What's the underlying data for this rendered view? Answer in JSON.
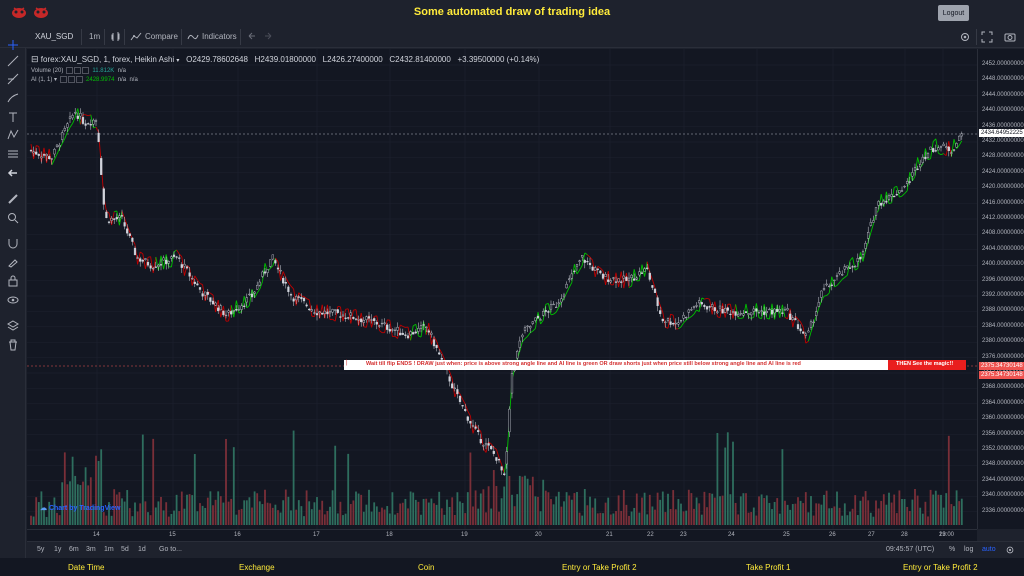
{
  "header": {
    "title": "Some automated draw of trading idea",
    "logout": "Logout"
  },
  "toolbar": {
    "symbol": "XAU_SGD",
    "interval": "1m",
    "compare": "Compare",
    "indicators": "Indicators"
  },
  "legend": {
    "title": "forex:XAU_SGD, 1, forex, Heikin Ashi",
    "o": "O2429.78602648",
    "h": "H2439.01800000",
    "l": "L2426.27400000",
    "c": "C2432.81400000",
    "change": "+3.39500000 (+0.14%)",
    "volume_label": "Volume (20)",
    "volume_value": "11.812K",
    "volume_na": "n/a",
    "ai_label": "AI (1, 1)",
    "ai_value": "2428.9974",
    "ai_na1": "n/a",
    "ai_na2": "n/a"
  },
  "price_axis": {
    "ticks": [
      "2452.00000000",
      "2448.00000000",
      "2444.00000000",
      "2440.00000000",
      "2436.00000000",
      "2432.00000000",
      "2428.00000000",
      "2424.00000000",
      "2420.00000000",
      "2416.00000000",
      "2412.00000000",
      "2408.00000000",
      "2404.00000000",
      "2400.00000000",
      "2396.00000000",
      "2392.00000000",
      "2388.00000000",
      "2384.00000000",
      "2380.00000000",
      "2376.00000000",
      "2372.00000000",
      "2368.00000000",
      "2364.00000000",
      "2360.00000000",
      "2356.00000000",
      "2352.00000000",
      "2348.00000000",
      "2344.00000000",
      "2340.00000000",
      "2336.00000000"
    ],
    "current_price": "2434.64952225",
    "line_price_1": "2375.34730148",
    "line_price_2": "2375.34730148"
  },
  "time_axis": {
    "labels": [
      "14",
      "15",
      "16",
      "17",
      "18",
      "19",
      "20",
      "21",
      "22",
      "23",
      "24",
      "25",
      "26",
      "27",
      "28",
      "29",
      "13:00"
    ]
  },
  "signal": {
    "text": "Wait till flip ENDS  !    DRAW just when:  price is above strong angle line and AI line is green          OR          draw shorts just when price still below strong angle line and AI line is red",
    "cta": "THEN See the magic!!"
  },
  "watermark": "Chart by TradingView",
  "bottom": {
    "ranges": [
      "5y",
      "1y",
      "6m",
      "3m",
      "1m",
      "5d",
      "1d"
    ],
    "goto": "Go to...",
    "time": "09:45:57 (UTC)",
    "percent": "%",
    "log": "log",
    "auto": "auto"
  },
  "footer": [
    "Date Time",
    "Exchange",
    "Coin",
    "Entry or Take Profit 2",
    "Take Profit 1",
    "Entry or Take Profit 2"
  ],
  "colors": {
    "bg": "#131722",
    "up": "#26a69a",
    "down": "#ef5350",
    "accent": "#ffeb3b",
    "ai_green": "#00c000",
    "ai_red": "#c00000"
  }
}
